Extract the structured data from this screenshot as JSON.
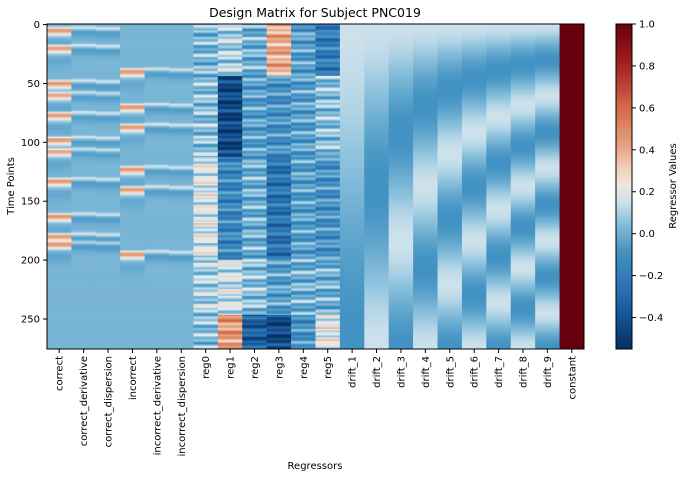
{
  "chart_data": {
    "type": "heatmap",
    "title": "Design Matrix for Subject PNC019",
    "xlabel": "Regressors",
    "ylabel": "Time Points",
    "columns": [
      "correct",
      "correct_derivative",
      "correct_dispersion",
      "incorrect",
      "incorrect_derivative",
      "incorrect_dispersion",
      "reg0",
      "reg1",
      "reg2",
      "reg3",
      "reg4",
      "reg5",
      "drift_1",
      "drift_2",
      "drift_3",
      "drift_4",
      "drift_5",
      "drift_6",
      "drift_7",
      "drift_8",
      "drift_9",
      "constant"
    ],
    "n_timepoints": 276,
    "y_ticks": [
      0,
      50,
      100,
      150,
      200,
      250
    ],
    "y_tick_labels": [
      "0",
      "50",
      "100",
      "150",
      "200",
      "250"
    ],
    "colorbar": {
      "label": "Regressor Values",
      "vmin": -0.55,
      "vmax": 1.0,
      "ticks": [
        1.0,
        0.8,
        0.6,
        0.4,
        0.2,
        0.0,
        -0.2,
        -0.4
      ],
      "tick_labels": [
        "1.0",
        "0.8",
        "0.6",
        "0.4",
        "0.2",
        "0.0",
        "−0.2",
        "−0.4"
      ],
      "colormap": "RdBu_r-like (blue → white → red)"
    },
    "event_onsets": {
      "correct": [
        0,
        15,
        45,
        55,
        72,
        93,
        103,
        128,
        158,
        175,
        182
      ],
      "incorrect": [
        35,
        65,
        82,
        118,
        135,
        190
      ]
    },
    "motion_segments": [
      {
        "until": 44,
        "reg0": 0.02,
        "reg1": 0.1,
        "reg2": 0.0,
        "reg3": 0.4,
        "reg4": -0.05,
        "reg5": -0.2
      },
      {
        "until": 113,
        "reg0": 0.05,
        "reg1": -0.45,
        "reg2": -0.05,
        "reg3": -0.1,
        "reg4": -0.05,
        "reg5": 0.05
      },
      {
        "until": 200,
        "reg0": 0.18,
        "reg1": -0.15,
        "reg2": 0.0,
        "reg3": -0.25,
        "reg4": -0.05,
        "reg5": -0.1
      },
      {
        "until": 247,
        "reg0": 0.1,
        "reg1": 0.15,
        "reg2": 0.05,
        "reg3": -0.05,
        "reg4": 0.0,
        "reg5": 0.0
      },
      {
        "until": 276,
        "reg0": 0.05,
        "reg1": 0.45,
        "reg2": -0.35,
        "reg3": -0.45,
        "reg4": -0.1,
        "reg5": 0.2
      }
    ],
    "constant_value": 1.0,
    "drift_count": 9
  }
}
